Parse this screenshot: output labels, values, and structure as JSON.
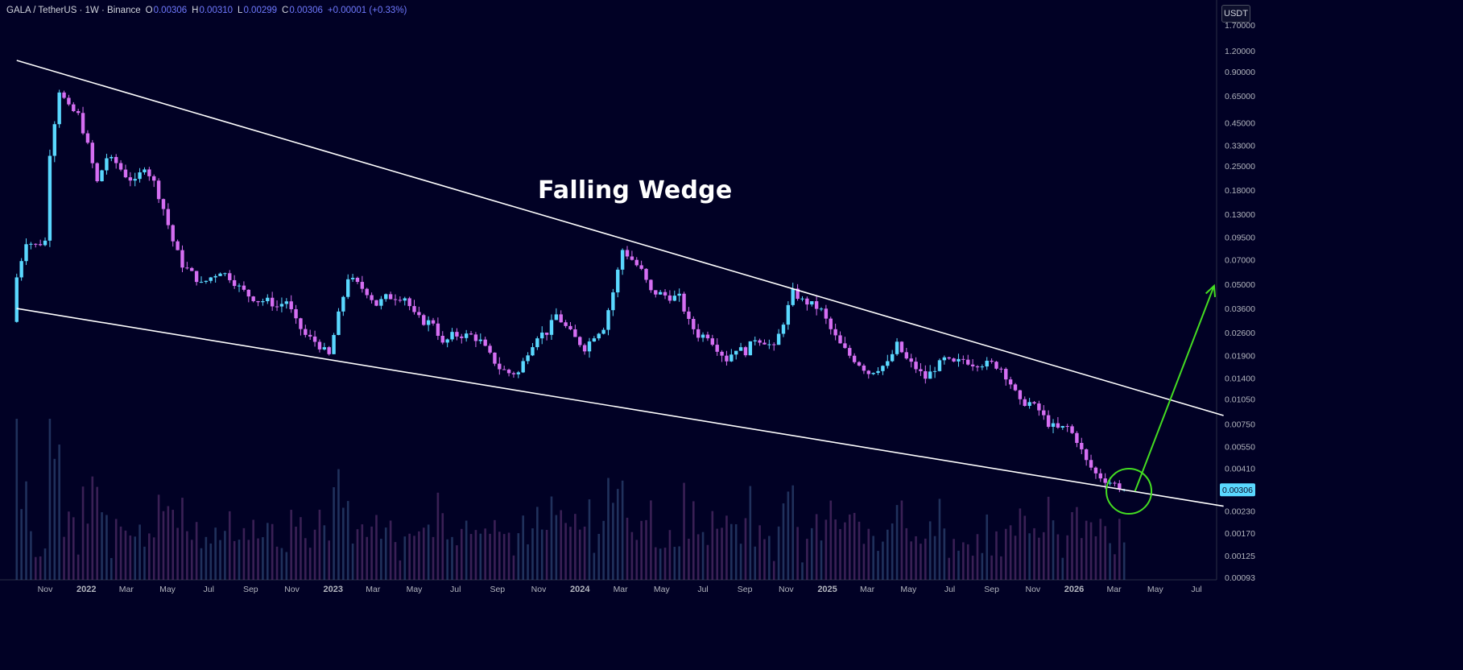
{
  "legend": {
    "symbol": "GALA / TetherUS · 1W · Binance",
    "open_key": "O",
    "open": "0.00306",
    "high_key": "H",
    "high": "0.00310",
    "low_key": "L",
    "low": "0.00299",
    "close_key": "C",
    "close": "0.00306",
    "change": "+0.00001 (+0.33%)"
  },
  "currency": "USDT",
  "annotation": "Falling Wedge",
  "price_badge": "0.00306",
  "colors": {
    "background": "#010125",
    "bull": "#5ad8ff",
    "bear": "#d56ef2",
    "trendline": "#ffffff",
    "arrow": "#44dd22",
    "circle": "#44dd22",
    "badge": "#5ad8ff"
  },
  "chart_data": {
    "type": "candlestick",
    "scale": "log",
    "y_ticks": [
      "1.70000",
      "1.20000",
      "0.90000",
      "0.65000",
      "0.45000",
      "0.33000",
      "0.25000",
      "0.18000",
      "0.13000",
      "0.09500",
      "0.07000",
      "0.05000",
      "0.03600",
      "0.02600",
      "0.01900",
      "0.01400",
      "0.01050",
      "0.00750",
      "0.00550",
      "0.00410",
      "0.00300",
      "0.00230",
      "0.00170",
      "0.00125",
      "0.00093"
    ],
    "x_ticks": [
      "Nov",
      "2022",
      "Mar",
      "May",
      "Jul",
      "Sep",
      "Nov",
      "2023",
      "Mar",
      "May",
      "Jul",
      "Sep",
      "Nov",
      "2024",
      "Mar",
      "May",
      "Jul",
      "Sep",
      "Nov",
      "2025",
      "Mar",
      "May",
      "Jul",
      "Sep",
      "Nov",
      "2026",
      "Mar",
      "May",
      "Jul"
    ],
    "last_price": 0.00306,
    "close_path": [
      [
        "2021-09-20",
        0.055
      ],
      [
        "2021-10-04",
        0.09
      ],
      [
        "2021-10-18",
        0.085
      ],
      [
        "2021-11-01",
        0.09
      ],
      [
        "2021-11-08",
        0.3
      ],
      [
        "2021-11-22",
        0.7
      ],
      [
        "2021-12-06",
        0.55
      ],
      [
        "2021-12-20",
        0.5
      ],
      [
        "2022-01-03",
        0.33
      ],
      [
        "2022-01-17",
        0.2
      ],
      [
        "2022-01-31",
        0.28
      ],
      [
        "2022-02-14",
        0.26
      ],
      [
        "2022-02-28",
        0.22
      ],
      [
        "2022-03-14",
        0.2
      ],
      [
        "2022-03-28",
        0.25
      ],
      [
        "2022-04-11",
        0.2
      ],
      [
        "2022-04-25",
        0.14
      ],
      [
        "2022-05-09",
        0.09
      ],
      [
        "2022-05-23",
        0.065
      ],
      [
        "2022-06-06",
        0.058
      ],
      [
        "2022-06-20",
        0.05
      ],
      [
        "2022-07-04",
        0.055
      ],
      [
        "2022-07-18",
        0.06
      ],
      [
        "2022-08-01",
        0.055
      ],
      [
        "2022-08-15",
        0.048
      ],
      [
        "2022-08-29",
        0.043
      ],
      [
        "2022-09-12",
        0.04
      ],
      [
        "2022-09-26",
        0.04
      ],
      [
        "2022-10-10",
        0.037
      ],
      [
        "2022-10-24",
        0.04
      ],
      [
        "2022-11-07",
        0.03
      ],
      [
        "2022-11-21",
        0.025
      ],
      [
        "2022-12-05",
        0.023
      ],
      [
        "2022-12-26",
        0.019
      ],
      [
        "2023-01-09",
        0.033
      ],
      [
        "2023-01-23",
        0.055
      ],
      [
        "2023-02-06",
        0.05
      ],
      [
        "2023-02-20",
        0.045
      ],
      [
        "2023-03-06",
        0.038
      ],
      [
        "2023-03-20",
        0.042
      ],
      [
        "2023-04-03",
        0.042
      ],
      [
        "2023-04-17",
        0.042
      ],
      [
        "2023-05-01",
        0.033
      ],
      [
        "2023-05-15",
        0.03
      ],
      [
        "2023-05-29",
        0.03
      ],
      [
        "2023-06-12",
        0.022
      ],
      [
        "2023-06-26",
        0.025
      ],
      [
        "2023-07-10",
        0.025
      ],
      [
        "2023-07-24",
        0.025
      ],
      [
        "2023-08-07",
        0.023
      ],
      [
        "2023-08-21",
        0.019
      ],
      [
        "2023-09-04",
        0.016
      ],
      [
        "2023-09-18",
        0.015
      ],
      [
        "2023-10-02",
        0.015
      ],
      [
        "2023-10-16",
        0.02
      ],
      [
        "2023-10-30",
        0.025
      ],
      [
        "2023-11-13",
        0.026
      ],
      [
        "2023-11-27",
        0.033
      ],
      [
        "2023-12-11",
        0.028
      ],
      [
        "2023-12-25",
        0.024
      ],
      [
        "2024-01-08",
        0.021
      ],
      [
        "2024-01-22",
        0.025
      ],
      [
        "2024-02-05",
        0.028
      ],
      [
        "2024-02-19",
        0.045
      ],
      [
        "2024-03-04",
        0.08
      ],
      [
        "2024-03-18",
        0.07
      ],
      [
        "2024-04-01",
        0.06
      ],
      [
        "2024-04-15",
        0.045
      ],
      [
        "2024-04-29",
        0.044
      ],
      [
        "2024-05-13",
        0.042
      ],
      [
        "2024-05-27",
        0.042
      ],
      [
        "2024-06-10",
        0.03
      ],
      [
        "2024-06-24",
        0.025
      ],
      [
        "2024-07-08",
        0.025
      ],
      [
        "2024-07-22",
        0.021
      ],
      [
        "2024-08-05",
        0.018
      ],
      [
        "2024-08-19",
        0.021
      ],
      [
        "2024-09-02",
        0.02
      ],
      [
        "2024-09-16",
        0.024
      ],
      [
        "2024-09-30",
        0.023
      ],
      [
        "2024-10-14",
        0.021
      ],
      [
        "2024-10-28",
        0.03
      ],
      [
        "2024-11-11",
        0.045
      ],
      [
        "2024-11-25",
        0.04
      ],
      [
        "2024-12-09",
        0.038
      ],
      [
        "2024-12-23",
        0.035
      ],
      [
        "2025-01-06",
        0.027
      ],
      [
        "2025-01-20",
        0.022
      ],
      [
        "2025-02-03",
        0.019
      ],
      [
        "2025-02-17",
        0.017
      ],
      [
        "2025-03-03",
        0.015
      ],
      [
        "2025-03-17",
        0.016
      ],
      [
        "2025-03-31",
        0.017
      ],
      [
        "2025-04-14",
        0.022
      ],
      [
        "2025-04-28",
        0.018
      ],
      [
        "2025-05-12",
        0.016
      ],
      [
        "2025-05-26",
        0.014
      ],
      [
        "2025-06-09",
        0.016
      ],
      [
        "2025-06-23",
        0.018
      ],
      [
        "2025-07-07",
        0.017
      ],
      [
        "2025-07-21",
        0.018
      ],
      [
        "2025-08-04",
        0.017
      ],
      [
        "2025-08-18",
        0.017
      ],
      [
        "2025-09-01",
        0.017
      ],
      [
        "2025-09-15",
        0.016
      ],
      [
        "2025-09-29",
        0.013
      ],
      [
        "2025-10-13",
        0.01
      ],
      [
        "2025-10-27",
        0.01
      ],
      [
        "2025-11-10",
        0.009
      ],
      [
        "2025-11-24",
        0.0075
      ],
      [
        "2025-12-08",
        0.007
      ],
      [
        "2025-12-22",
        0.0072
      ],
      [
        "2026-01-05",
        0.006
      ],
      [
        "2026-01-19",
        0.0045
      ],
      [
        "2026-02-02",
        0.0038
      ],
      [
        "2026-02-16",
        0.0035
      ],
      [
        "2026-03-02",
        0.0033
      ],
      [
        "2026-03-16",
        0.00306
      ]
    ],
    "upper_trendline": [
      [
        "2021-09-20",
        1.05
      ],
      [
        "2026-08-10",
        0.0084
      ]
    ],
    "lower_trendline": [
      [
        "2021-09-20",
        0.036
      ],
      [
        "2026-08-10",
        0.00245
      ]
    ],
    "target_arrow": [
      [
        "2026-04-01",
        0.003
      ],
      [
        "2026-07-27",
        0.049
      ]
    ],
    "breakout_circle_center": [
      "2026-03-23",
      0.003
    ]
  }
}
